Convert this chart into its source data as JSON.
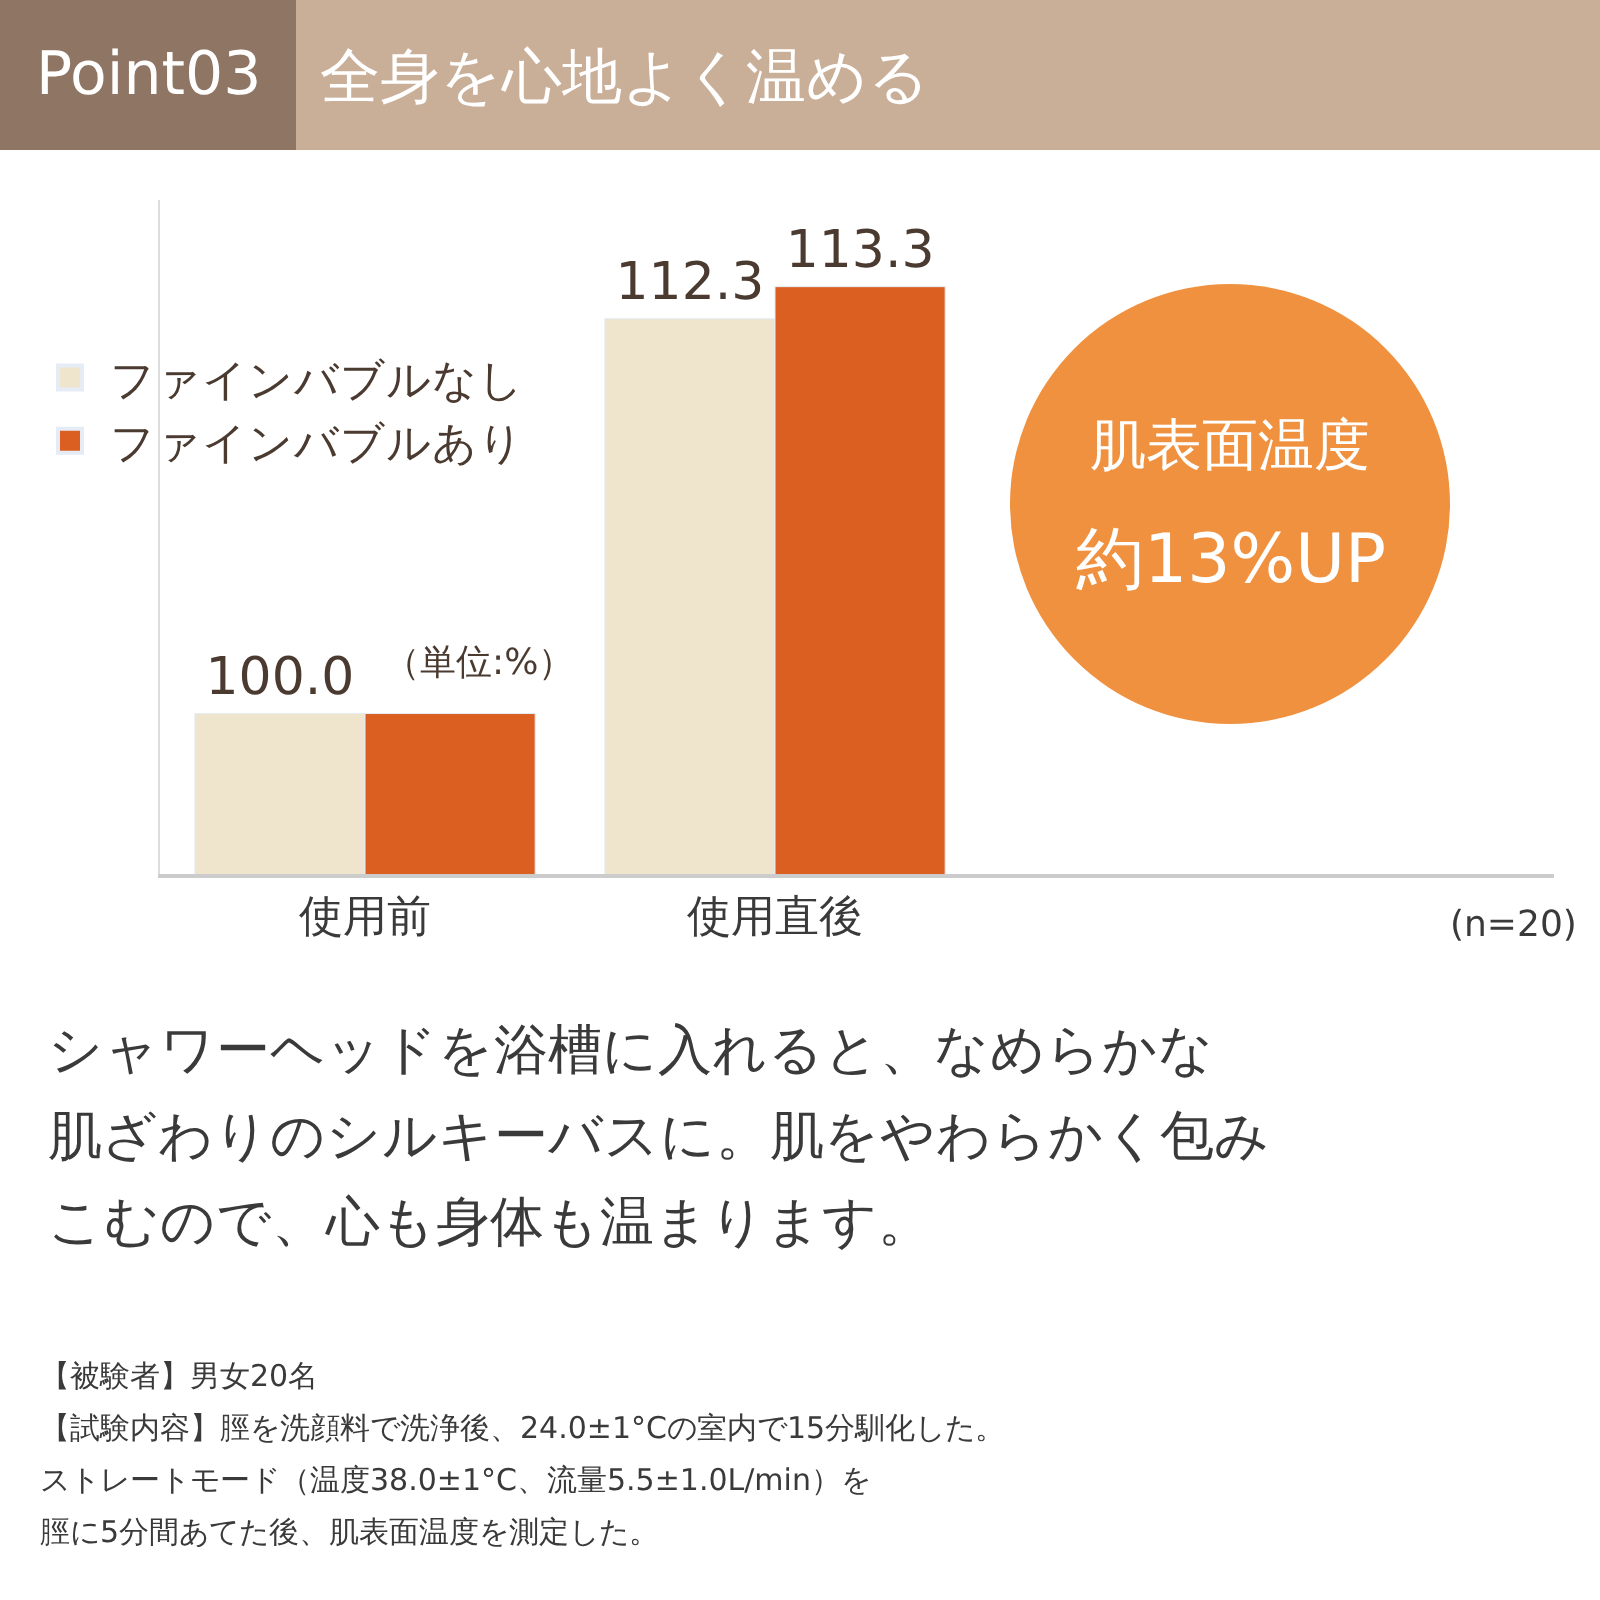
{
  "chart_data": {
    "type": "bar",
    "title": "全身を心地よく温める",
    "categories": [
      "使用前",
      "使用直後"
    ],
    "series": [
      {
        "name": "ファインバブルなし",
        "color": "#efe4cc",
        "values": [
          100.0,
          112.3
        ],
        "value_labels": [
          "100.0",
          "112.3"
        ]
      },
      {
        "name": "ファインバブルあり",
        "color": "#dc5f22",
        "values": [
          100.0,
          113.3
        ],
        "value_labels": [
          null,
          "113.3"
        ]
      }
    ],
    "ylim": [
      95,
      116
    ],
    "legend": "top left",
    "annotations": [
      "Point03",
      "（単位:%）",
      "肌表面温度",
      "約13%UP",
      "(n=20)",
      "シャワーヘッドを浴槽に入れると、なめらかな",
      "肌ざわりのシルキーバスに。肌をやわらかく包み",
      "こむので、心も身体も温まります。",
      "【被験者】男女20名",
      "【試験内容】脛を洗顔料で洗浄後、24.0±1°Cの室内で15分馴化した。",
      "ストレートモード（温度38.0±1°C、流量5.5±1.0L/min）を",
      "脛に5分間あてた後、肌表面温度を測定した。"
    ]
  }
}
